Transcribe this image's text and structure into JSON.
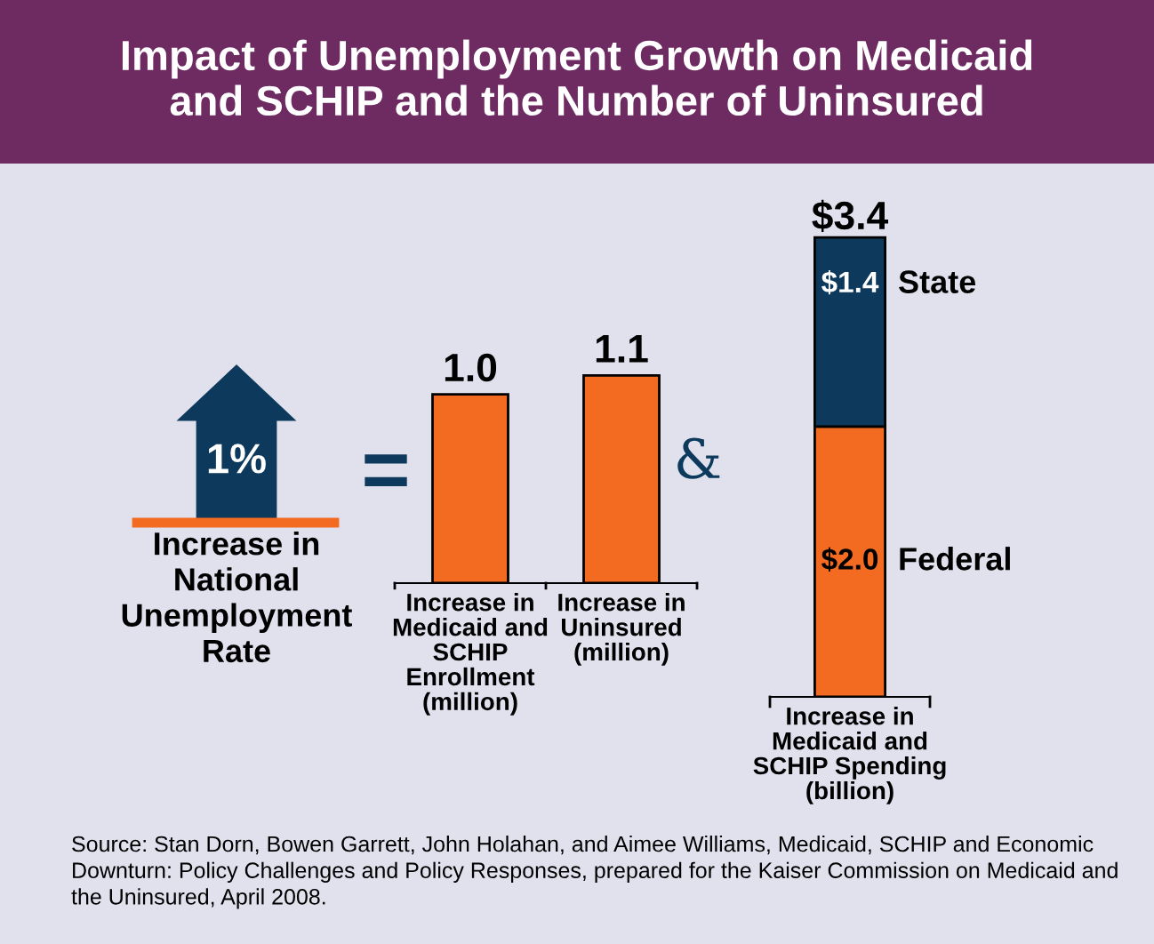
{
  "chart_data": [
    {
      "type": "other",
      "title": "Impact of Unemployment Growth on Medicaid\nand SCHIP and the Number of Uninsured",
      "annotations": [
        "1%",
        "Increase in\nNational\nUnemployment\nRate",
        "="
      ]
    },
    {
      "type": "bar",
      "categories": [
        "Increase in\nMedicaid and\nSCHIP\nEnrollment\n(million)",
        "Increase in\nUninsured\n(million)"
      ],
      "values": [
        1.0,
        1.1
      ],
      "color": "#f26b21",
      "value_labels": [
        "1.0",
        "1.1"
      ]
    },
    {
      "type": "bar",
      "stacked": true,
      "categories": [
        "Increase in\nMedicaid and\nSCHIP Spending\n(billion)"
      ],
      "series": [
        {
          "name": "Federal",
          "color": "#f26b21",
          "values": [
            2.0
          ],
          "value_labels": [
            "$2.0"
          ]
        },
        {
          "name": "State",
          "color": "#0d3a5c",
          "values": [
            1.4
          ],
          "value_labels": [
            "$1.4"
          ]
        }
      ],
      "totals": [
        "$3.4"
      ],
      "annotations": [
        "&",
        "Source: Stan Dorn, Bowen Garrett, John Holahan, and Aimee Williams, Medicaid, SCHIP and Economic Downturn: Policy Challenges and Policy Responses, prepared for the Kaiser Commission on Medicaid and the Uninsured, April 2008."
      ]
    }
  ]
}
